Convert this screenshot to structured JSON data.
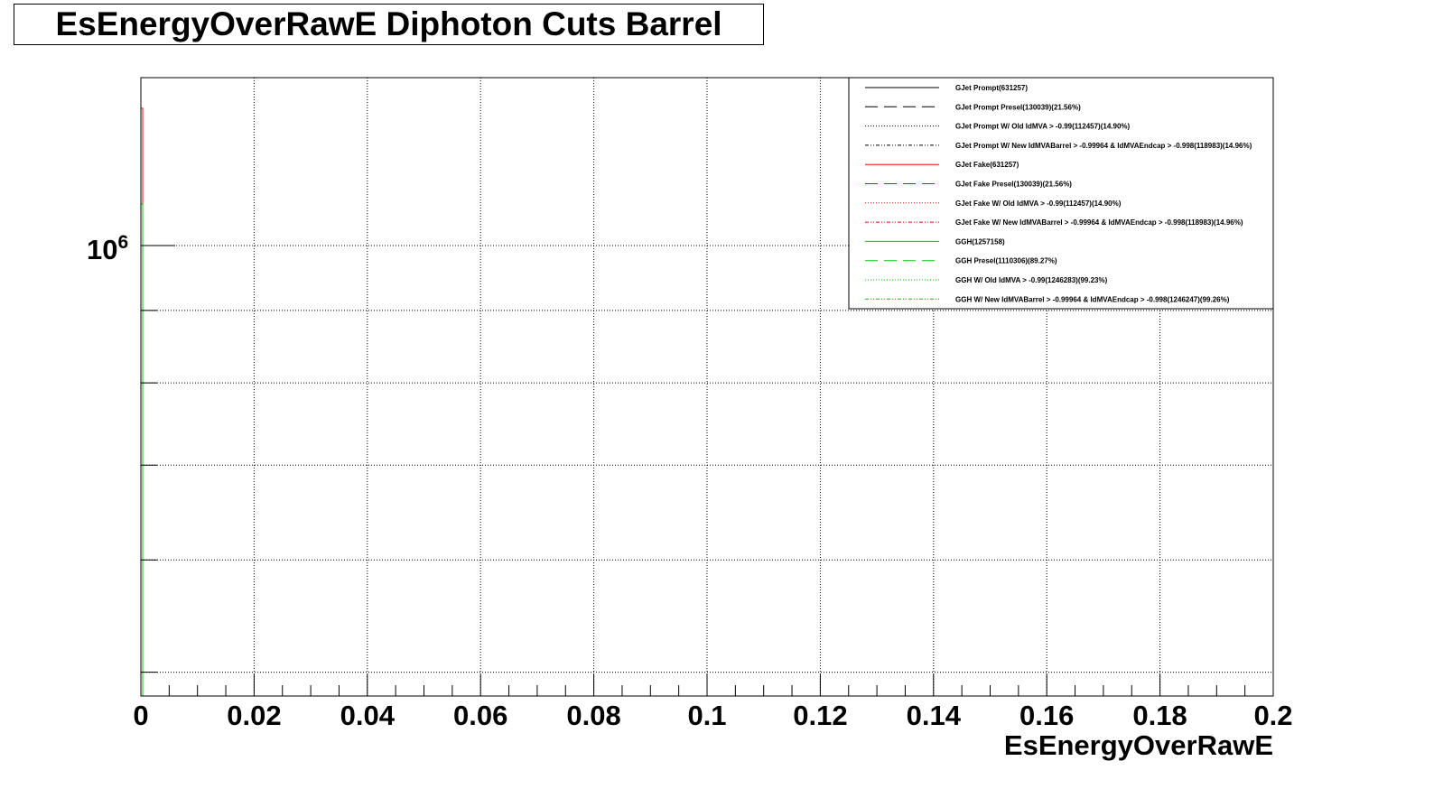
{
  "chart_data": {
    "type": "line",
    "title": "EsEnergyOverRawE Diphoton Cuts Barrel",
    "xlabel": "EsEnergyOverRawE",
    "ylabel": "",
    "xlim": [
      0,
      0.2
    ],
    "yscale": "log",
    "grid": true,
    "legend_position": "top-right",
    "x_tick_labels": [
      "0",
      "0.02",
      "0.04",
      "0.06",
      "0.08",
      "0.1",
      "0.12",
      "0.14",
      "0.16",
      "0.18",
      "0.2"
    ],
    "x_ticks": [
      0,
      0.02,
      0.04,
      0.06,
      0.08,
      0.1,
      0.12,
      0.14,
      0.16,
      0.18,
      0.2
    ],
    "y_tick_label_base": "10",
    "y_tick_label_exp": "6",
    "y_tick_value": 1000000,
    "series": [
      {
        "name": "GJet Prompt(631257)",
        "color": "#000000",
        "dash": "solid",
        "values": []
      },
      {
        "name": "GJet Prompt Presel(130039)(21.56%)",
        "color": "#000000",
        "dash": "longdash",
        "values": []
      },
      {
        "name": "GJet Prompt W/ Old IdMVA > -0.99(112457)(14.90%)",
        "color": "#000000",
        "dash": "dotted",
        "values": []
      },
      {
        "name": "GJet Prompt W/ New IdMVABarrel > -0.99964 & IdMVAEndcap > -0.998(118983)(14.96%)",
        "color": "#000000",
        "dash": "dashdot",
        "values": []
      },
      {
        "name": "GJet Fake(631257)",
        "color": "#ff0000",
        "dash": "solid",
        "values": [
          {
            "x": 0.0,
            "y": 1250000
          }
        ]
      },
      {
        "name": "GJet Fake Presel(130039)(21.56%)",
        "color": "#ff0000",
        "dash": "longdash",
        "values": []
      },
      {
        "name": "GJet Fake W/ Old IdMVA > -0.99(112457)(14.90%)",
        "color": "#ff0000",
        "dash": "dotted",
        "values": []
      },
      {
        "name": "GJet Fake W/ New IdMVABarrel > -0.99964 & IdMVAEndcap > -0.998(118983)(14.96%)",
        "color": "#ff0000",
        "dash": "dashdot",
        "values": []
      },
      {
        "name": "GGH(1257158)",
        "color": "#00cc00",
        "dash": "solid",
        "values": [
          {
            "x": 0.0,
            "y": 1070000
          }
        ]
      },
      {
        "name": "GGH Presel(1110306)(89.27%)",
        "color": "#00cc00",
        "dash": "longdash",
        "values": []
      },
      {
        "name": "GGH W/ Old IdMVA > -0.99(1246283)(99.23%)",
        "color": "#00cc00",
        "dash": "dotted",
        "values": []
      },
      {
        "name": "GGH W/ New IdMVABarrel > -0.99964 & IdMVAEndcap > -0.998(1246247)(99.26%)",
        "color": "#00cc00",
        "dash": "dashdot",
        "values": []
      }
    ]
  }
}
